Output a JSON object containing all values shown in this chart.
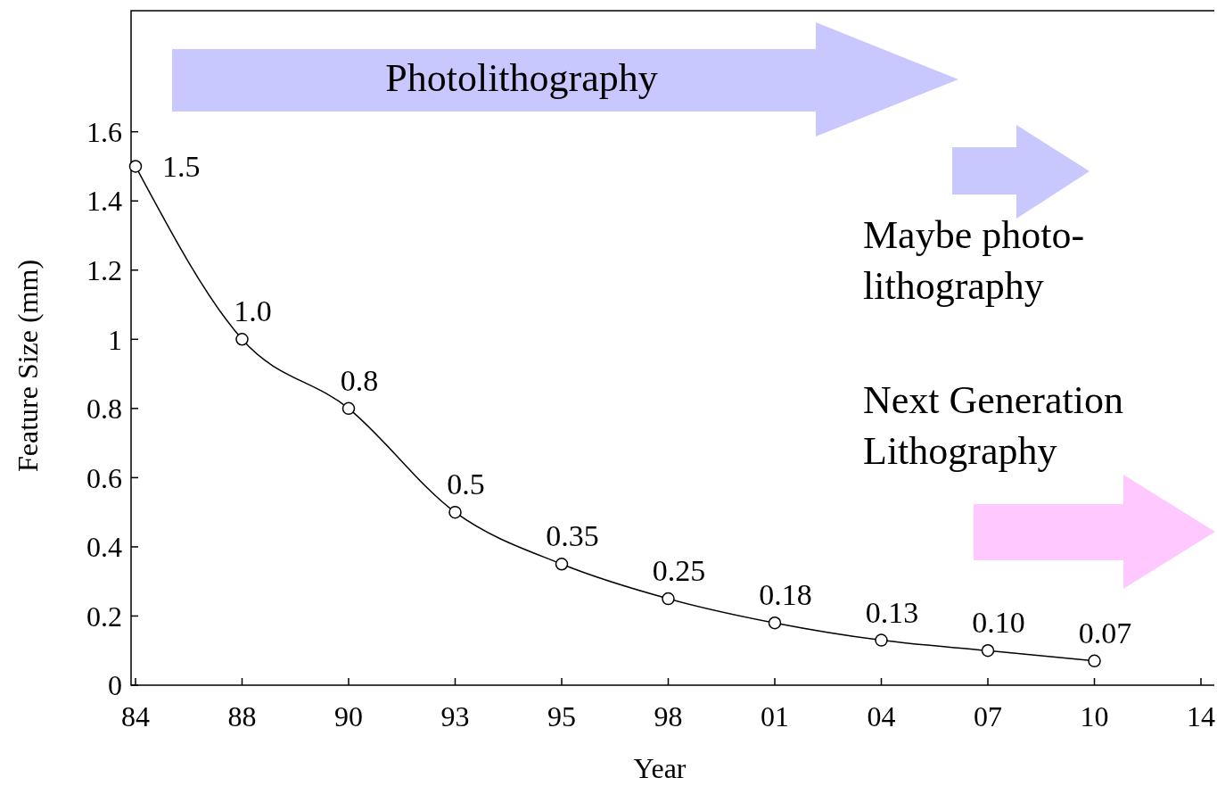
{
  "chart_data": {
    "type": "line",
    "xlabel": "Year",
    "ylabel": "Feature Size (mm)",
    "categories": [
      "84",
      "88",
      "90",
      "93",
      "95",
      "98",
      "01",
      "04",
      "07",
      "10",
      "14"
    ],
    "series": [
      {
        "color": "#000000",
        "values": [
          1.5,
          1,
          0.8,
          0.5,
          0.35,
          0.25,
          0.18,
          0.13,
          0.1,
          0.07,
          null
        ],
        "value_labels": [
          "1.5",
          "1.0",
          "0.8",
          "0.5",
          "0.35",
          "0.25",
          "0.18",
          "0.13",
          "0.10",
          "0.07",
          null
        ]
      }
    ],
    "ylim": [
      0,
      1.95
    ],
    "yticks": [
      0,
      0.2,
      0.4,
      0.6,
      0.8,
      1,
      1.2,
      1.4,
      1.6
    ],
    "marker": "circle",
    "grid": false,
    "annotations": [
      "Photolithography",
      "Maybe photo-\nlithography",
      "Next Generation\nLithography"
    ]
  }
}
